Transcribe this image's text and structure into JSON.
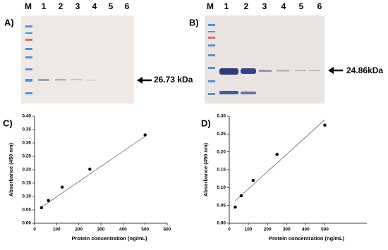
{
  "blots": [
    {
      "panel": "A)",
      "lanes": [
        "M",
        "1",
        "2",
        "3",
        "4",
        "5",
        "6"
      ],
      "band_label": "26.73 kDa"
    },
    {
      "panel": "B)",
      "lanes": [
        "M",
        "1",
        "2",
        "3",
        "4",
        "5",
        "6"
      ],
      "band_label": "24.86kDa"
    }
  ],
  "chart_data": [
    {
      "type": "scatter",
      "panel": "C)",
      "x_label": "Protein concentration   (ng/mL)",
      "y_label": "Absorbance  (450 nm)",
      "x": [
        31.25,
        62.5,
        125,
        250,
        500
      ],
      "values": [
        0.058,
        0.085,
        0.135,
        0.202,
        0.33
      ],
      "color": "#000000",
      "fit_line": {
        "x": [
          31.25,
          500
        ],
        "y": [
          0.06,
          0.325
        ]
      },
      "xlim": [
        0,
        600
      ],
      "xticks": [
        0,
        100,
        200,
        300,
        400,
        500,
        600
      ],
      "ylim": [
        0,
        0.4
      ],
      "yticks": [
        {
          "value": 0,
          "label": "0.00"
        },
        0.05,
        {
          "value": 0.1,
          "label": "0.10"
        },
        0.15,
        {
          "value": 0.2,
          "label": "0.20"
        },
        0.25,
        {
          "value": 0.3,
          "label": "0.30"
        },
        0.35,
        {
          "value": 0.4,
          "label": "0.40"
        }
      ]
    },
    {
      "type": "scatter",
      "panel": "D)",
      "x_label": "Protein concentration   (ng/mL)",
      "y_label": "Absorbance  (450 nm)",
      "x": [
        31.25,
        62.5,
        125,
        250,
        500
      ],
      "values": [
        0.045,
        0.077,
        0.12,
        0.193,
        0.275
      ],
      "color": "#000000",
      "fit_line": {
        "x": [
          31.25,
          500
        ],
        "y": [
          0.063,
          0.29
        ]
      },
      "xlim": [
        0,
        720
      ],
      "xticks": [
        0,
        100,
        200,
        300,
        400,
        500
      ],
      "ylim": [
        0,
        0.3
      ],
      "yticks": [
        {
          "value": 0,
          "label": "0.00"
        },
        0.05,
        {
          "value": 0.1,
          "label": "0.10"
        },
        0.15,
        {
          "value": 0.2,
          "label": "0.20"
        },
        0.25,
        {
          "value": 0.3,
          "label": "0.30"
        }
      ]
    }
  ]
}
